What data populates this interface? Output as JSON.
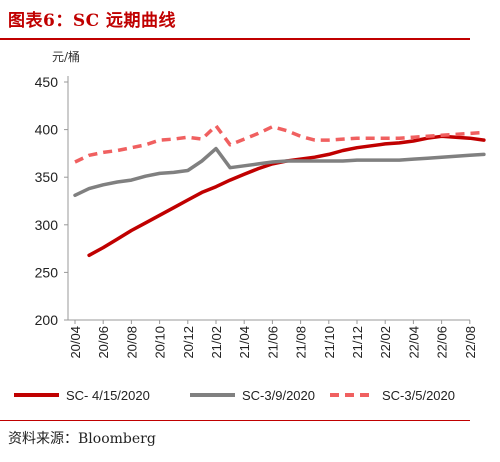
{
  "figure_title": "图表6：SC 远期曲线",
  "source": "资料来源：Bloomberg",
  "chart_data": {
    "type": "line",
    "unit_label": "元/桶",
    "x_tick_labels": [
      "20/04",
      "20/06",
      "20/08",
      "20/10",
      "20/12",
      "21/02",
      "21/04",
      "21/06",
      "21/08",
      "21/10",
      "21/12",
      "22/02",
      "22/04",
      "22/06",
      "22/08"
    ],
    "ylim": [
      200,
      450
    ],
    "y_ticks": [
      200,
      250,
      300,
      350,
      400,
      450
    ],
    "grid": false,
    "legend_position": "bottom",
    "series": [
      {
        "name": "SC- 4/15/2020",
        "color": "#c00000",
        "style": "solid",
        "points": [
          {
            "x": "20/05",
            "y": 268
          },
          {
            "x": "20/06",
            "y": 276
          },
          {
            "x": "20/07",
            "y": 285
          },
          {
            "x": "20/08",
            "y": 294
          },
          {
            "x": "20/09",
            "y": 302
          },
          {
            "x": "20/10",
            "y": 310
          },
          {
            "x": "20/11",
            "y": 318
          },
          {
            "x": "20/12",
            "y": 326
          },
          {
            "x": "21/01",
            "y": 334
          },
          {
            "x": "21/02",
            "y": 340
          },
          {
            "x": "21/03",
            "y": 347
          },
          {
            "x": "21/04",
            "y": 353
          },
          {
            "x": "21/05",
            "y": 359
          },
          {
            "x": "21/06",
            "y": 364
          },
          {
            "x": "21/07",
            "y": 367
          },
          {
            "x": "21/08",
            "y": 369
          },
          {
            "x": "21/09",
            "y": 371
          },
          {
            "x": "21/10",
            "y": 374
          },
          {
            "x": "21/11",
            "y": 378
          },
          {
            "x": "21/12",
            "y": 381
          },
          {
            "x": "22/01",
            "y": 383
          },
          {
            "x": "22/02",
            "y": 385
          },
          {
            "x": "22/03",
            "y": 386
          },
          {
            "x": "22/04",
            "y": 388
          },
          {
            "x": "22/05",
            "y": 391
          },
          {
            "x": "22/06",
            "y": 393
          },
          {
            "x": "22/07",
            "y": 392
          },
          {
            "x": "22/08",
            "y": 391
          },
          {
            "x": "22/09",
            "y": 389
          }
        ]
      },
      {
        "name": "SC-3/9/2020",
        "color": "#808080",
        "style": "solid",
        "points": [
          {
            "x": "20/04",
            "y": 331
          },
          {
            "x": "20/05",
            "y": 338
          },
          {
            "x": "20/06",
            "y": 342
          },
          {
            "x": "20/07",
            "y": 345
          },
          {
            "x": "20/08",
            "y": 347
          },
          {
            "x": "20/09",
            "y": 351
          },
          {
            "x": "20/10",
            "y": 354
          },
          {
            "x": "20/11",
            "y": 355
          },
          {
            "x": "20/12",
            "y": 357
          },
          {
            "x": "21/01",
            "y": 367
          },
          {
            "x": "21/02",
            "y": 380
          },
          {
            "x": "21/03",
            "y": 360
          },
          {
            "x": "21/04",
            "y": 362
          },
          {
            "x": "21/05",
            "y": 364
          },
          {
            "x": "21/06",
            "y": 366
          },
          {
            "x": "21/07",
            "y": 367
          },
          {
            "x": "21/08",
            "y": 367
          },
          {
            "x": "21/09",
            "y": 367
          },
          {
            "x": "21/10",
            "y": 367
          },
          {
            "x": "21/11",
            "y": 367
          },
          {
            "x": "21/12",
            "y": 368
          },
          {
            "x": "22/01",
            "y": 368
          },
          {
            "x": "22/02",
            "y": 368
          },
          {
            "x": "22/03",
            "y": 368
          },
          {
            "x": "22/04",
            "y": 369
          },
          {
            "x": "22/05",
            "y": 370
          },
          {
            "x": "22/06",
            "y": 371
          },
          {
            "x": "22/07",
            "y": 372
          },
          {
            "x": "22/08",
            "y": 373
          },
          {
            "x": "22/09",
            "y": 374
          }
        ]
      },
      {
        "name": "SC-3/5/2020",
        "color": "#f06060",
        "style": "dashed",
        "points": [
          {
            "x": "20/04",
            "y": 366
          },
          {
            "x": "20/05",
            "y": 373
          },
          {
            "x": "20/06",
            "y": 376
          },
          {
            "x": "20/07",
            "y": 378
          },
          {
            "x": "20/08",
            "y": 381
          },
          {
            "x": "20/09",
            "y": 384
          },
          {
            "x": "20/10",
            "y": 389
          },
          {
            "x": "20/11",
            "y": 390
          },
          {
            "x": "20/12",
            "y": 392
          },
          {
            "x": "21/01",
            "y": 390
          },
          {
            "x": "21/02",
            "y": 404
          },
          {
            "x": "21/03",
            "y": 384
          },
          {
            "x": "21/04",
            "y": 390
          },
          {
            "x": "21/05",
            "y": 396
          },
          {
            "x": "21/06",
            "y": 403
          },
          {
            "x": "21/07",
            "y": 399
          },
          {
            "x": "21/08",
            "y": 393
          },
          {
            "x": "21/09",
            "y": 389
          },
          {
            "x": "21/10",
            "y": 389
          },
          {
            "x": "21/11",
            "y": 390
          },
          {
            "x": "21/12",
            "y": 391
          },
          {
            "x": "22/01",
            "y": 391
          },
          {
            "x": "22/02",
            "y": 391
          },
          {
            "x": "22/03",
            "y": 391
          },
          {
            "x": "22/04",
            "y": 392
          },
          {
            "x": "22/05",
            "y": 393
          },
          {
            "x": "22/06",
            "y": 394
          },
          {
            "x": "22/07",
            "y": 395
          },
          {
            "x": "22/08",
            "y": 396
          },
          {
            "x": "22/09",
            "y": 397
          }
        ]
      }
    ]
  }
}
